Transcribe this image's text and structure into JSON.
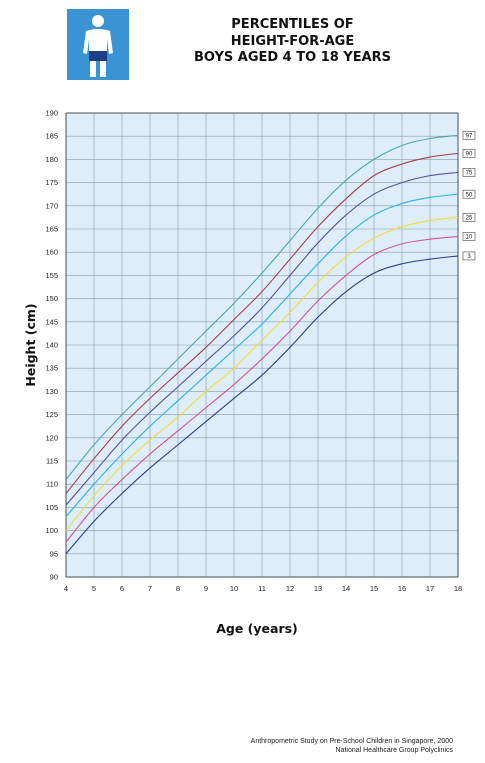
{
  "header": {
    "title_lines": [
      "PERCENTILES OF",
      "HEIGHT-FOR-AGE",
      "BOYS AGED 4 TO 18 YEARS"
    ],
    "logo_icon": "boy-figure-icon",
    "logo_color": "#3a93d3"
  },
  "footer": {
    "line1": "Anthropometric Study on Pre-School Children in Singapore, 2000",
    "line2": "National Healthcare Group Polyclinics"
  },
  "chart_data": {
    "type": "line",
    "title": "PERCENTILES OF HEIGHT-FOR-AGE BOYS AGED 4 TO 18 YEARS",
    "xlabel": "Age (years)",
    "ylabel": "Height (cm)",
    "xlim": [
      4,
      18
    ],
    "ylim": [
      90,
      190
    ],
    "x_ticks": [
      4,
      5,
      6,
      7,
      8,
      9,
      10,
      11,
      12,
      13,
      14,
      15,
      16,
      17,
      18
    ],
    "y_ticks": [
      90,
      95,
      100,
      105,
      110,
      115,
      120,
      125,
      130,
      135,
      140,
      145,
      150,
      155,
      160,
      165,
      170,
      175,
      180,
      185,
      190
    ],
    "grid": true,
    "plot_background": "#ddeefa",
    "x": [
      4,
      5,
      6,
      7,
      8,
      9,
      10,
      11,
      12,
      13,
      14,
      15,
      16,
      17,
      18
    ],
    "series": [
      {
        "name": "97",
        "color": "#4aa6a6",
        "values": [
          111,
          118.5,
          125,
          131,
          137,
          143,
          149,
          155.5,
          162.5,
          169.5,
          175.5,
          180,
          183,
          184.5,
          185.2
        ]
      },
      {
        "name": "90",
        "color": "#a83c48",
        "values": [
          108,
          115.5,
          122.5,
          128.5,
          134,
          139.5,
          145.5,
          151.5,
          158.5,
          165.5,
          171.5,
          176.5,
          179,
          180.5,
          181.3
        ]
      },
      {
        "name": "75",
        "color": "#5a4e9c",
        "values": [
          105.5,
          112.5,
          119.5,
          125.5,
          131,
          136.5,
          142,
          148,
          155,
          162,
          168,
          172.5,
          175,
          176.5,
          177.2
        ]
      },
      {
        "name": "50",
        "color": "#2ab0e8",
        "values": [
          103,
          110,
          116.5,
          122.5,
          128,
          133.5,
          139,
          144.5,
          151,
          157.5,
          163.5,
          168,
          170.5,
          171.8,
          172.5
        ]
      },
      {
        "name": "25",
        "color": "#f2dc3c",
        "values": [
          100,
          107.5,
          114,
          119.5,
          124.5,
          130,
          135,
          141,
          147,
          153.5,
          159,
          163,
          165.5,
          166.8,
          167.5
        ]
      },
      {
        "name": "10",
        "color": "#d64f94",
        "values": [
          97.5,
          105,
          111,
          116.5,
          121.5,
          126.5,
          131.5,
          137,
          143,
          149.5,
          155,
          159.5,
          161.8,
          162.8,
          163.4
        ]
      },
      {
        "name": "3",
        "color": "#2c3e86",
        "values": [
          95,
          102,
          108,
          113.5,
          118.5,
          123.5,
          128.5,
          133.5,
          139.5,
          146,
          151.5,
          155.5,
          157.5,
          158.5,
          159.2
        ]
      }
    ]
  }
}
